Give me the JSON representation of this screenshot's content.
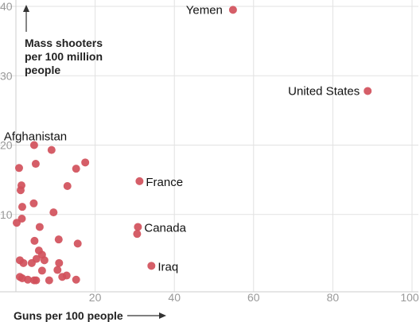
{
  "chart_data": {
    "type": "scatter",
    "title": "",
    "xlabel": "Guns per 100 people",
    "ylabel_lines": [
      "Mass shooters",
      "per 100 million",
      "people"
    ],
    "xlim": [
      0,
      100
    ],
    "ylim": [
      0,
      40
    ],
    "x_ticks": [
      20,
      40,
      60,
      80,
      100
    ],
    "y_ticks": [
      10,
      20,
      30,
      40
    ],
    "grid": true,
    "colors": {
      "point": "#d1505b",
      "grid": "#e2e2e2",
      "tick_text": "#999999",
      "label_text": "#111111"
    },
    "labeled_points": [
      {
        "label": "Yemen",
        "x": 54.8,
        "y": 39.5
      },
      {
        "label": "United States",
        "x": 88.8,
        "y": 27.8
      },
      {
        "label": "France",
        "x": 31.2,
        "y": 14.8
      },
      {
        "label": "Canada",
        "x": 30.8,
        "y": 8.2
      },
      {
        "label": "Iraq",
        "x": 34.2,
        "y": 2.6
      },
      {
        "label": "Afghanistan",
        "x": 4.6,
        "y": 20.0
      }
    ],
    "points": [
      {
        "x": 0.8,
        "y": 16.7
      },
      {
        "x": 1.4,
        "y": 14.2
      },
      {
        "x": 1.2,
        "y": 13.5
      },
      {
        "x": 1.6,
        "y": 11.1
      },
      {
        "x": 4.5,
        "y": 11.6
      },
      {
        "x": 9.0,
        "y": 19.3
      },
      {
        "x": 5.0,
        "y": 17.3
      },
      {
        "x": 17.5,
        "y": 17.5
      },
      {
        "x": 15.2,
        "y": 16.6
      },
      {
        "x": 13.0,
        "y": 14.1
      },
      {
        "x": 9.5,
        "y": 10.3
      },
      {
        "x": 0.2,
        "y": 8.8
      },
      {
        "x": 1.5,
        "y": 9.4
      },
      {
        "x": 6.0,
        "y": 8.2
      },
      {
        "x": 4.7,
        "y": 6.2
      },
      {
        "x": 10.8,
        "y": 6.4
      },
      {
        "x": 15.6,
        "y": 5.8
      },
      {
        "x": 5.8,
        "y": 4.8
      },
      {
        "x": 6.6,
        "y": 4.2
      },
      {
        "x": 7.2,
        "y": 3.4
      },
      {
        "x": 1.0,
        "y": 3.4
      },
      {
        "x": 1.9,
        "y": 3.0
      },
      {
        "x": 4.0,
        "y": 3.0
      },
      {
        "x": 5.2,
        "y": 3.6
      },
      {
        "x": 10.9,
        "y": 3.0
      },
      {
        "x": 10.5,
        "y": 2.0
      },
      {
        "x": 1.0,
        "y": 1.0
      },
      {
        "x": 1.6,
        "y": 0.8
      },
      {
        "x": 4.6,
        "y": 0.5
      },
      {
        "x": 5.1,
        "y": 0.5
      },
      {
        "x": 8.4,
        "y": 0.5
      },
      {
        "x": 11.7,
        "y": 1.0
      },
      {
        "x": 12.8,
        "y": 1.2
      },
      {
        "x": 15.2,
        "y": 0.6
      },
      {
        "x": 3.0,
        "y": 0.6
      },
      {
        "x": 6.6,
        "y": 1.9
      },
      {
        "x": 30.6,
        "y": 7.2
      }
    ]
  }
}
